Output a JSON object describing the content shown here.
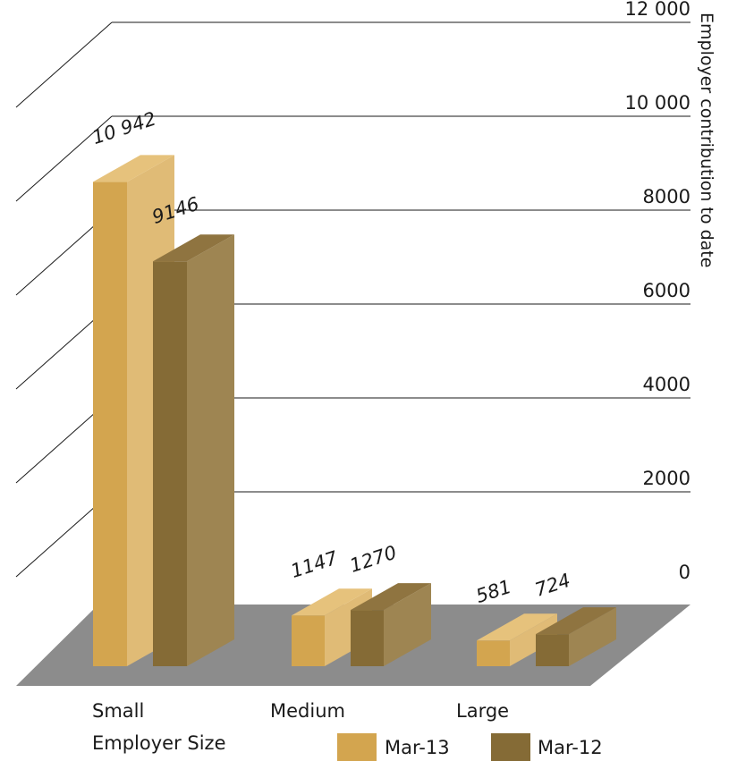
{
  "chart_data": {
    "type": "bar",
    "style": "3d-clustered",
    "categories": [
      "Small",
      "Medium",
      "Large"
    ],
    "series": [
      {
        "name": "Mar-13",
        "values": [
          10942,
          1147,
          581
        ],
        "color": "#d3a54f",
        "side_color": "#e0bb76",
        "top_color": "#e6c27c"
      },
      {
        "name": "Mar-12",
        "values": [
          9146,
          1270,
          724
        ],
        "color": "#856b36",
        "side_color": "#9e8552",
        "top_color": "#8f7440"
      }
    ],
    "value_labels": [
      [
        "10 942",
        "1147",
        "581"
      ],
      [
        "9146",
        "1270",
        "724"
      ]
    ],
    "xlabel": "Employer Size",
    "ylabel": "Employer contribution to date",
    "ylim": [
      0,
      12000
    ],
    "yticks": [
      0,
      2000,
      4000,
      6000,
      8000,
      10000,
      12000
    ],
    "ytick_labels": [
      "0",
      "2000",
      "4000",
      "6000",
      "8000",
      "10 000",
      "12 000"
    ],
    "grid": true,
    "legend_position": "bottom",
    "floor_color": "#8c8c8c",
    "grid_color": "#1a1a1a"
  }
}
